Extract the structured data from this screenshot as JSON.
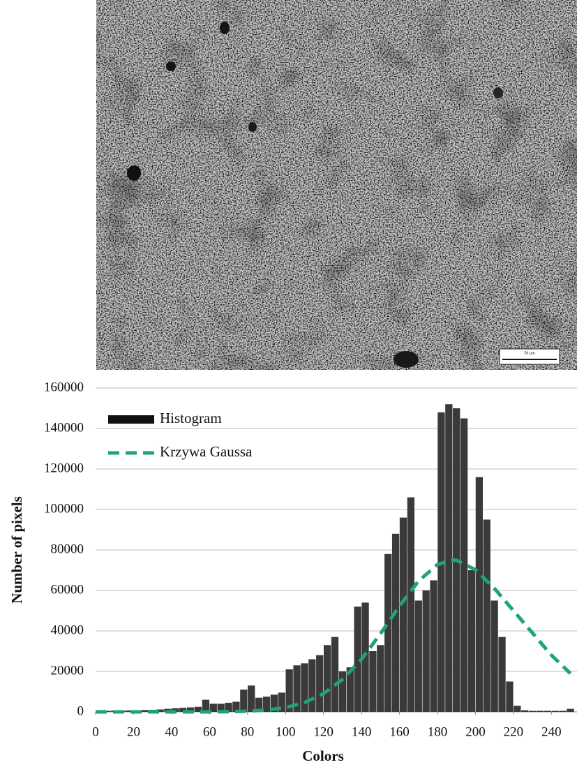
{
  "image": {
    "scale_bar_label": "50 µm"
  },
  "chart_data": {
    "type": "histogram",
    "x_label": "Colors",
    "y_label": "Number of pixels",
    "bins": [
      0,
      4,
      8,
      12,
      16,
      20,
      24,
      28,
      32,
      36,
      40,
      44,
      48,
      52,
      56,
      60,
      64,
      68,
      72,
      76,
      80,
      84,
      88,
      92,
      96,
      100,
      104,
      108,
      112,
      116,
      120,
      124,
      128,
      132,
      136,
      140,
      144,
      148,
      152,
      156,
      160,
      164,
      168,
      172,
      176,
      180,
      184,
      188,
      192,
      196,
      200,
      204,
      208,
      212,
      216,
      220,
      224,
      228,
      232,
      236,
      240,
      244,
      248,
      252
    ],
    "series": [
      {
        "name": "Histogram",
        "color": "#3a3a3a",
        "values": [
          500,
          500,
          600,
          600,
          700,
          800,
          900,
          1000,
          1200,
          1500,
          1800,
          2000,
          2200,
          2500,
          6000,
          4000,
          4000,
          4500,
          5000,
          11000,
          13000,
          7000,
          7500,
          8500,
          9500,
          21000,
          23000,
          24000,
          26000,
          28000,
          33000,
          37000,
          20000,
          22000,
          52000,
          54000,
          30000,
          33000,
          78000,
          88000,
          96000,
          106000,
          55000,
          60000,
          65000,
          148000,
          152000,
          150000,
          145000,
          70000,
          116000,
          95000,
          55000,
          37000,
          15000,
          3000,
          800,
          500,
          500,
          500,
          500,
          500,
          1500
        ]
      },
      {
        "name": "Krzywa Gaussa",
        "color": "#1fa56e",
        "type": "line",
        "line_style": "dashed",
        "x": [
          0,
          10,
          20,
          30,
          40,
          50,
          60,
          70,
          80,
          90,
          100,
          110,
          120,
          130,
          140,
          150,
          160,
          170,
          180,
          188,
          190,
          200,
          210,
          220,
          230,
          240,
          250
        ],
        "values": [
          0,
          0,
          0,
          0,
          0,
          0,
          0,
          100,
          350,
          900,
          2100,
          4600,
          9000,
          16000,
          26000,
          38600,
          52300,
          64600,
          72800,
          75000,
          74900,
          70200,
          61000,
          50000,
          39000,
          28000,
          19000
        ]
      }
    ],
    "xlim": [
      0,
      252
    ],
    "xticks": [
      0,
      20,
      40,
      60,
      80,
      100,
      120,
      140,
      160,
      180,
      200,
      220,
      240
    ],
    "ylim": [
      0,
      160000
    ],
    "yticks": [
      0,
      20000,
      40000,
      60000,
      80000,
      100000,
      120000,
      140000,
      160000
    ],
    "grid": true,
    "legend": "upper left"
  }
}
